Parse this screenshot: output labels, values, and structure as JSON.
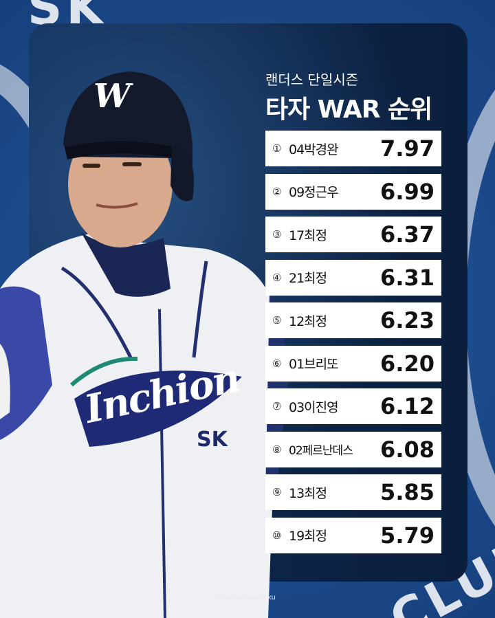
{
  "header": {
    "subtitle": "랜더스 단일시즌",
    "title": "타자 WAR 순위"
  },
  "ranking": [
    {
      "rank": "①",
      "name": "04박경완",
      "war": "7.97"
    },
    {
      "rank": "②",
      "name": "09정근우",
      "war": "6.99"
    },
    {
      "rank": "③",
      "name": "17최정",
      "war": "6.37"
    },
    {
      "rank": "④",
      "name": "21최정",
      "war": "6.31"
    },
    {
      "rank": "⑤",
      "name": "12최정",
      "war": "6.23"
    },
    {
      "rank": "⑥",
      "name": "01브리또",
      "war": "6.20"
    },
    {
      "rank": "⑦",
      "name": "03이진영",
      "war": "6.12"
    },
    {
      "rank": "⑧",
      "name": "02페르난데스",
      "war": "6.08"
    },
    {
      "rank": "⑨",
      "name": "13최정",
      "war": "5.85"
    },
    {
      "rank": "⑩",
      "name": "19최정",
      "war": "5.79"
    }
  ],
  "jersey": {
    "wordmark": "Inchion",
    "number_patch": "SK",
    "helmet_logo": "W"
  },
  "background": {
    "top_text": "SK",
    "bottom_text": "CLUB"
  },
  "credit": "@nangmanyakku",
  "colors": {
    "background_blue": "#1f4f93",
    "card_navy": "#0c2447",
    "jersey_white": "#f2f2f4",
    "jersey_navy": "#1d2a6e",
    "row_white": "#ffffff"
  }
}
